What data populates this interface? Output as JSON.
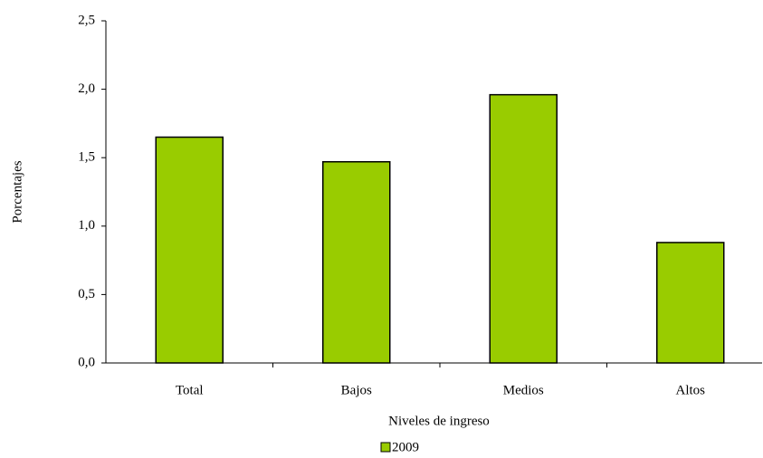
{
  "chart_data": {
    "type": "bar",
    "x_label": "Niveles de ingreso",
    "y_label": "Porcentajes",
    "categories": [
      "Total",
      "Bajos",
      "Medios",
      "Altos"
    ],
    "series": [
      {
        "name": "2009",
        "color": "#99cc00",
        "values": [
          1.65,
          1.47,
          1.96,
          0.88
        ]
      }
    ],
    "ylim": [
      0,
      2.5
    ],
    "yticks": [
      {
        "value": 0,
        "label": "0,0"
      },
      {
        "value": 0.5,
        "label": "0,5"
      },
      {
        "value": 1,
        "label": "1,0"
      },
      {
        "value": 1.5,
        "label": "1,5"
      },
      {
        "value": 2,
        "label": "2,0"
      },
      {
        "value": 2.5,
        "label": "2,5"
      }
    ],
    "legend": "bottom"
  }
}
